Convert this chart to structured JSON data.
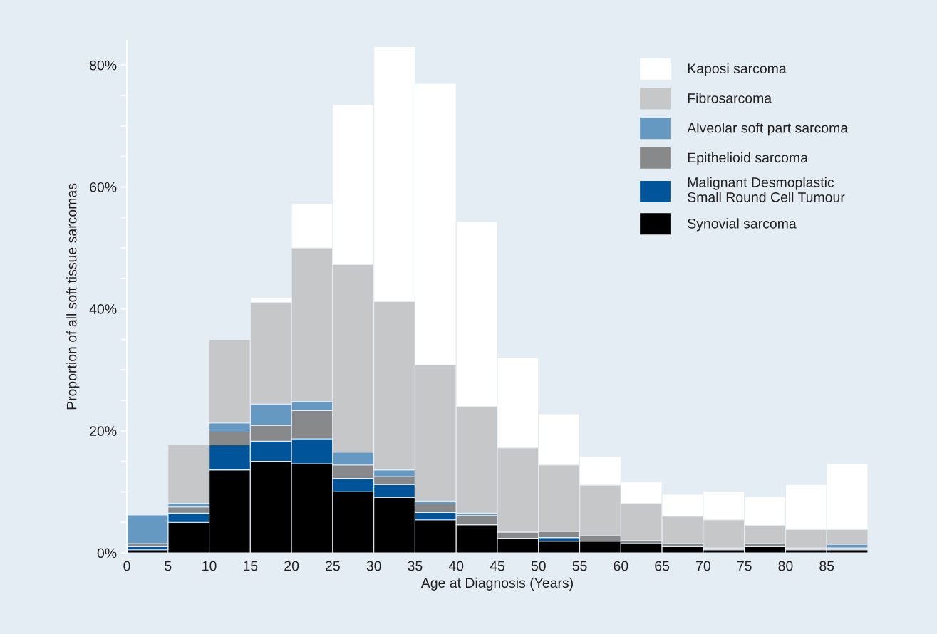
{
  "chart_data": {
    "type": "bar",
    "stacked": true,
    "xlabel": "Age at Diagnosis (Years)",
    "ylabel": "Proportion of all soft tissue sarcomas",
    "x": [
      2.5,
      7.5,
      12.5,
      17.5,
      22.5,
      27.5,
      32.5,
      37.5,
      42.5,
      47.5,
      52.5,
      57.5,
      62.5,
      67.5,
      72.5,
      77.5,
      82.5,
      87.5
    ],
    "xlim": [
      0,
      90
    ],
    "xticks": [
      0,
      5,
      10,
      15,
      20,
      25,
      30,
      35,
      40,
      45,
      50,
      55,
      60,
      65,
      70,
      75,
      80,
      85
    ],
    "ylim": [
      0,
      84
    ],
    "yticks": [
      {
        "value": 0,
        "label": "0%"
      },
      {
        "value": 5,
        "label": null
      },
      {
        "value": 10,
        "label": null
      },
      {
        "value": 15,
        "label": null
      },
      {
        "value": 20,
        "label": "20%"
      },
      {
        "value": 25,
        "label": null
      },
      {
        "value": 30,
        "label": null
      },
      {
        "value": 35,
        "label": null
      },
      {
        "value": 40,
        "label": "40%"
      },
      {
        "value": 45,
        "label": null
      },
      {
        "value": 50,
        "label": null
      },
      {
        "value": 55,
        "label": null
      },
      {
        "value": 60,
        "label": "60%"
      },
      {
        "value": 65,
        "label": null
      },
      {
        "value": 70,
        "label": null
      },
      {
        "value": 75,
        "label": null
      },
      {
        "value": 80,
        "label": "80%"
      }
    ],
    "grid": false,
    "legend": "top right",
    "series": [
      {
        "name": "Synovial sarcoma",
        "color": "#000000",
        "values": [
          0.5,
          5.0,
          13.6,
          15.0,
          14.6,
          10.0,
          9.1,
          5.4,
          4.6,
          2.4,
          1.9,
          1.9,
          1.5,
          1.0,
          0.5,
          1.0,
          0.5,
          0.5
        ]
      },
      {
        "name": "Malignant Desmoplastic\nSmall Round Cell Tumour",
        "color": "#00559a",
        "values": [
          0.5,
          1.5,
          4.1,
          3.3,
          4.1,
          2.2,
          2.1,
          1.2,
          0,
          0,
          0.6,
          0,
          0,
          0,
          0,
          0,
          0,
          0
        ]
      },
      {
        "name": "Epithelioid sarcoma",
        "color": "#88898b",
        "values": [
          0.5,
          1.0,
          2.1,
          2.6,
          4.6,
          2.2,
          1.3,
          1.4,
          1.5,
          1.0,
          1.0,
          0.9,
          0.5,
          0.5,
          0.3,
          0.5,
          0.3,
          0.3
        ]
      },
      {
        "name": "Alveolar soft part sarcoma",
        "color": "#6699c2",
        "values": [
          4.7,
          0.6,
          1.5,
          3.5,
          1.5,
          2.1,
          1.1,
          0.5,
          0.4,
          0,
          0,
          0,
          0,
          0,
          0,
          0,
          0,
          0.6
        ]
      },
      {
        "name": "Fibrosarcoma",
        "color": "#c6c7c9",
        "values": [
          0,
          9.6,
          13.7,
          16.7,
          25.2,
          30.8,
          27.6,
          22.3,
          17.5,
          13.8,
          10.9,
          8.3,
          6.1,
          4.5,
          4.6,
          3.0,
          3.0,
          2.4
        ]
      },
      {
        "name": "Kaposi sarcoma",
        "color": "#ffffff",
        "values": [
          0,
          0,
          0,
          0.8,
          7.3,
          26.2,
          41.8,
          46.2,
          30.3,
          14.8,
          8.4,
          4.7,
          3.6,
          3.6,
          4.7,
          4.7,
          7.4,
          10.8
        ]
      }
    ]
  }
}
